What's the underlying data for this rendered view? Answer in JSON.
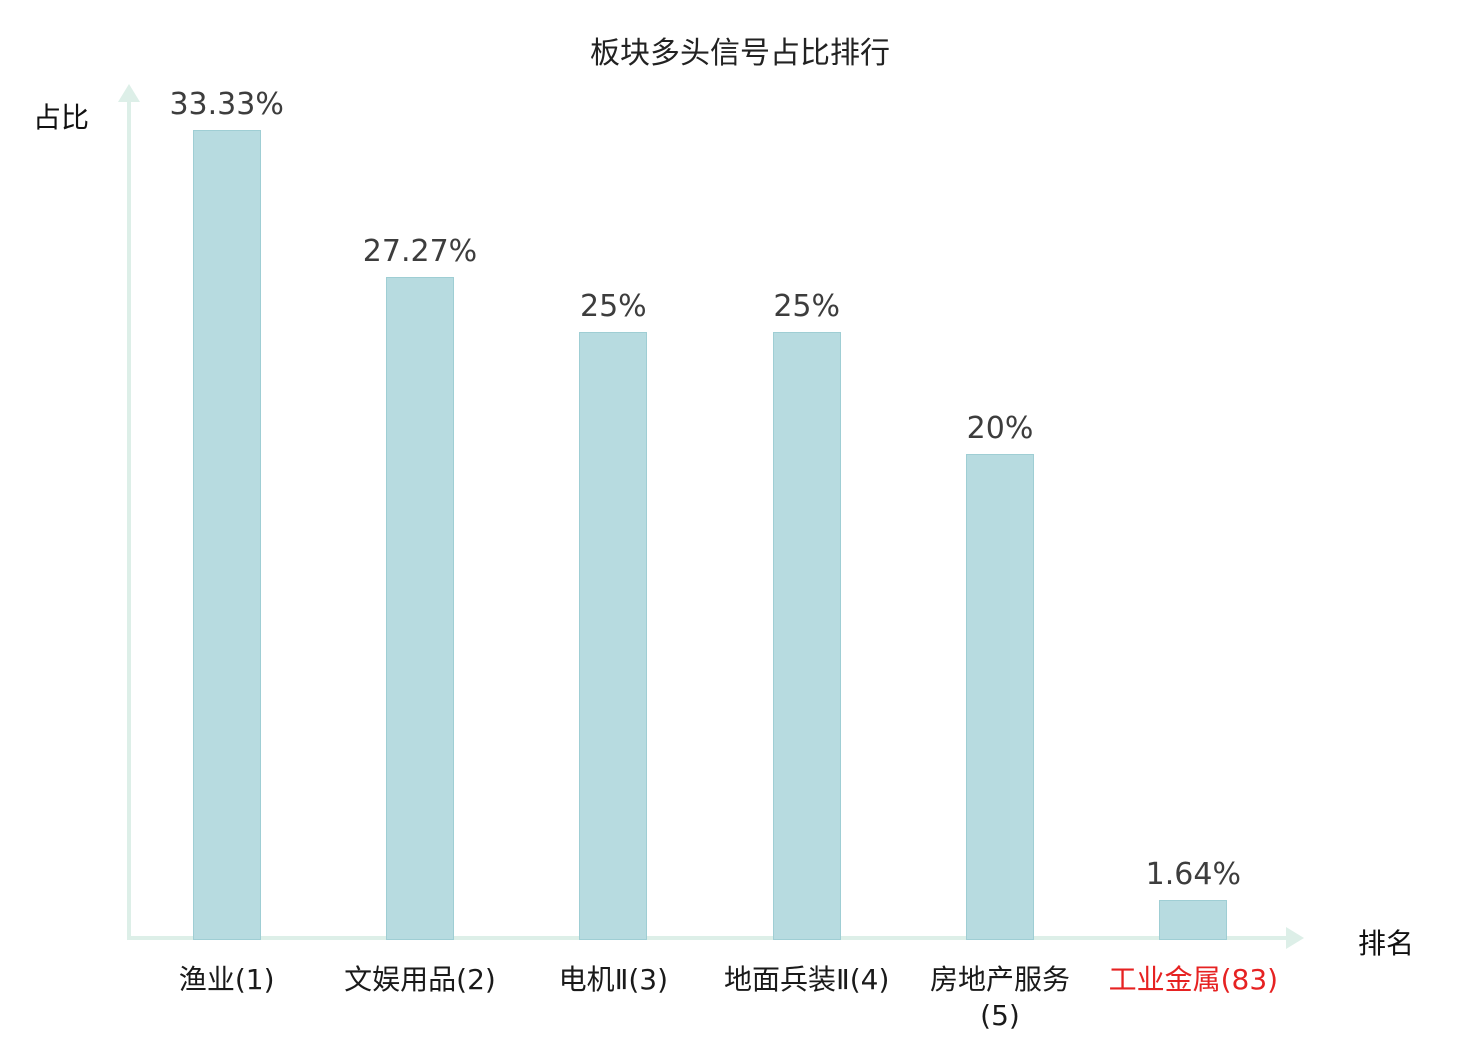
{
  "chart_data": {
    "type": "bar",
    "title": "板块多头信号占比排行",
    "xlabel": "排名",
    "ylabel": "占比",
    "categories": [
      "渔业(1)",
      "文娱用品(2)",
      "电机Ⅱ(3)",
      "地面兵装Ⅱ(4)",
      "房地产服务(5)",
      "工业金属(83)"
    ],
    "values": [
      33.33,
      27.27,
      25,
      25,
      20,
      1.64
    ],
    "value_labels": [
      "33.33%",
      "27.27%",
      "25%",
      "25%",
      "20%",
      "1.64%"
    ],
    "ylim": [
      0,
      35
    ],
    "grid": false,
    "legend": "none",
    "bar_color": "#b7dbe0",
    "bar_border_color": "#9fced4",
    "axis_color": "#ddefe8",
    "value_label_color": "#3d3d3d",
    "category_label_color": "#1a1a1a",
    "highlight_index": 5,
    "highlight_color": "#e62222"
  }
}
